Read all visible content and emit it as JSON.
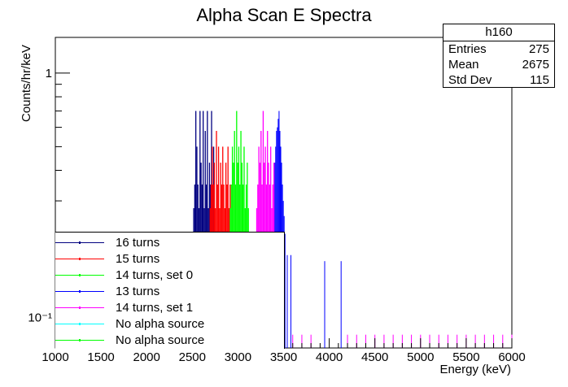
{
  "chart_data": {
    "type": "histogram",
    "title": "Alpha Scan E Spectra",
    "xlabel": "Energy (keV)",
    "ylabel": "Counts/hr/keV",
    "xlim": [
      1000,
      6000
    ],
    "ylog": true,
    "ylim": [
      0.075,
      1.4
    ],
    "x_ticks": [
      "1000",
      "1500",
      "2000",
      "2500",
      "3000",
      "3500",
      "4000",
      "4500",
      "5000",
      "5500",
      "6000"
    ],
    "y_ticks": [
      {
        "value": 1,
        "label": "1"
      },
      {
        "value": 0.1,
        "label": "10⁻¹"
      }
    ],
    "grid": false,
    "legend": "bottom-left",
    "series": [
      {
        "name": "16 turns",
        "color": "#000080",
        "ranges": [
          [
            2510,
            2740
          ]
        ],
        "heights": [
          0.28,
          0.35,
          0.7,
          0.5,
          0.35,
          0.28,
          0.7,
          0.43,
          0.35,
          0.7,
          0.28,
          0.58,
          0.35,
          0.7,
          0.28,
          0.43,
          0.35,
          0.7,
          0.28,
          0.5
        ]
      },
      {
        "name": "15 turns",
        "color": "#ff0000",
        "ranges": [
          [
            2690,
            2920
          ]
        ],
        "heights": [
          0.28,
          0.35,
          0.5,
          0.35,
          0.43,
          0.28,
          0.58,
          0.35,
          0.5,
          0.28,
          0.43,
          0.35,
          0.5,
          0.35,
          0.28,
          0.43,
          0.35,
          0.5,
          0.28,
          0.35
        ]
      },
      {
        "name": "14 turns, set 0",
        "color": "#00ff00",
        "ranges": [
          [
            2910,
            3120
          ]
        ],
        "heights": [
          0.28,
          0.35,
          0.5,
          0.43,
          0.58,
          0.35,
          0.7,
          0.43,
          0.5,
          0.35,
          0.58,
          0.43,
          0.35,
          0.5,
          0.28,
          0.35,
          0.43,
          0.28
        ]
      },
      {
        "name": "13 turns",
        "color": "#0000ff",
        "ranges": [
          [
            3390,
            3520
          ]
        ],
        "heights": [
          0.35,
          0.43,
          0.5,
          0.58,
          0.6,
          0.65,
          0.7,
          0.58,
          0.5,
          0.43,
          0.35,
          0.3,
          0.26,
          0.22
        ],
        "sparse_x": [
          3540,
          3580,
          3950,
          4130
        ]
      },
      {
        "name": "14 turns, set 1",
        "color": "#ff00ff",
        "ranges": [
          [
            3200,
            3400
          ]
        ],
        "heights": [
          0.28,
          0.35,
          0.5,
          0.43,
          0.58,
          0.35,
          0.7,
          0.43,
          0.5,
          0.35,
          0.58,
          0.43,
          0.35,
          0.5,
          0.28,
          0.35,
          0.43
        ],
        "sparse_x": [
          3600,
          3700,
          3800,
          4200,
          4300,
          4400,
          4500,
          4600,
          4700,
          4800,
          4900,
          5000,
          5100,
          5200,
          5300,
          5400,
          5500,
          5600,
          5700,
          5800,
          5900,
          6000
        ]
      },
      {
        "name": "No alpha source",
        "color": "#00ffff",
        "ranges": []
      },
      {
        "name": "No alpha source",
        "color": "#00ff00",
        "ranges": []
      }
    ]
  },
  "stats_box": {
    "name": "h160",
    "rows": [
      {
        "label": "Entries",
        "value": "275"
      },
      {
        "label": "Mean",
        "value": "2675"
      },
      {
        "label": "Std Dev",
        "value": "115"
      }
    ]
  }
}
